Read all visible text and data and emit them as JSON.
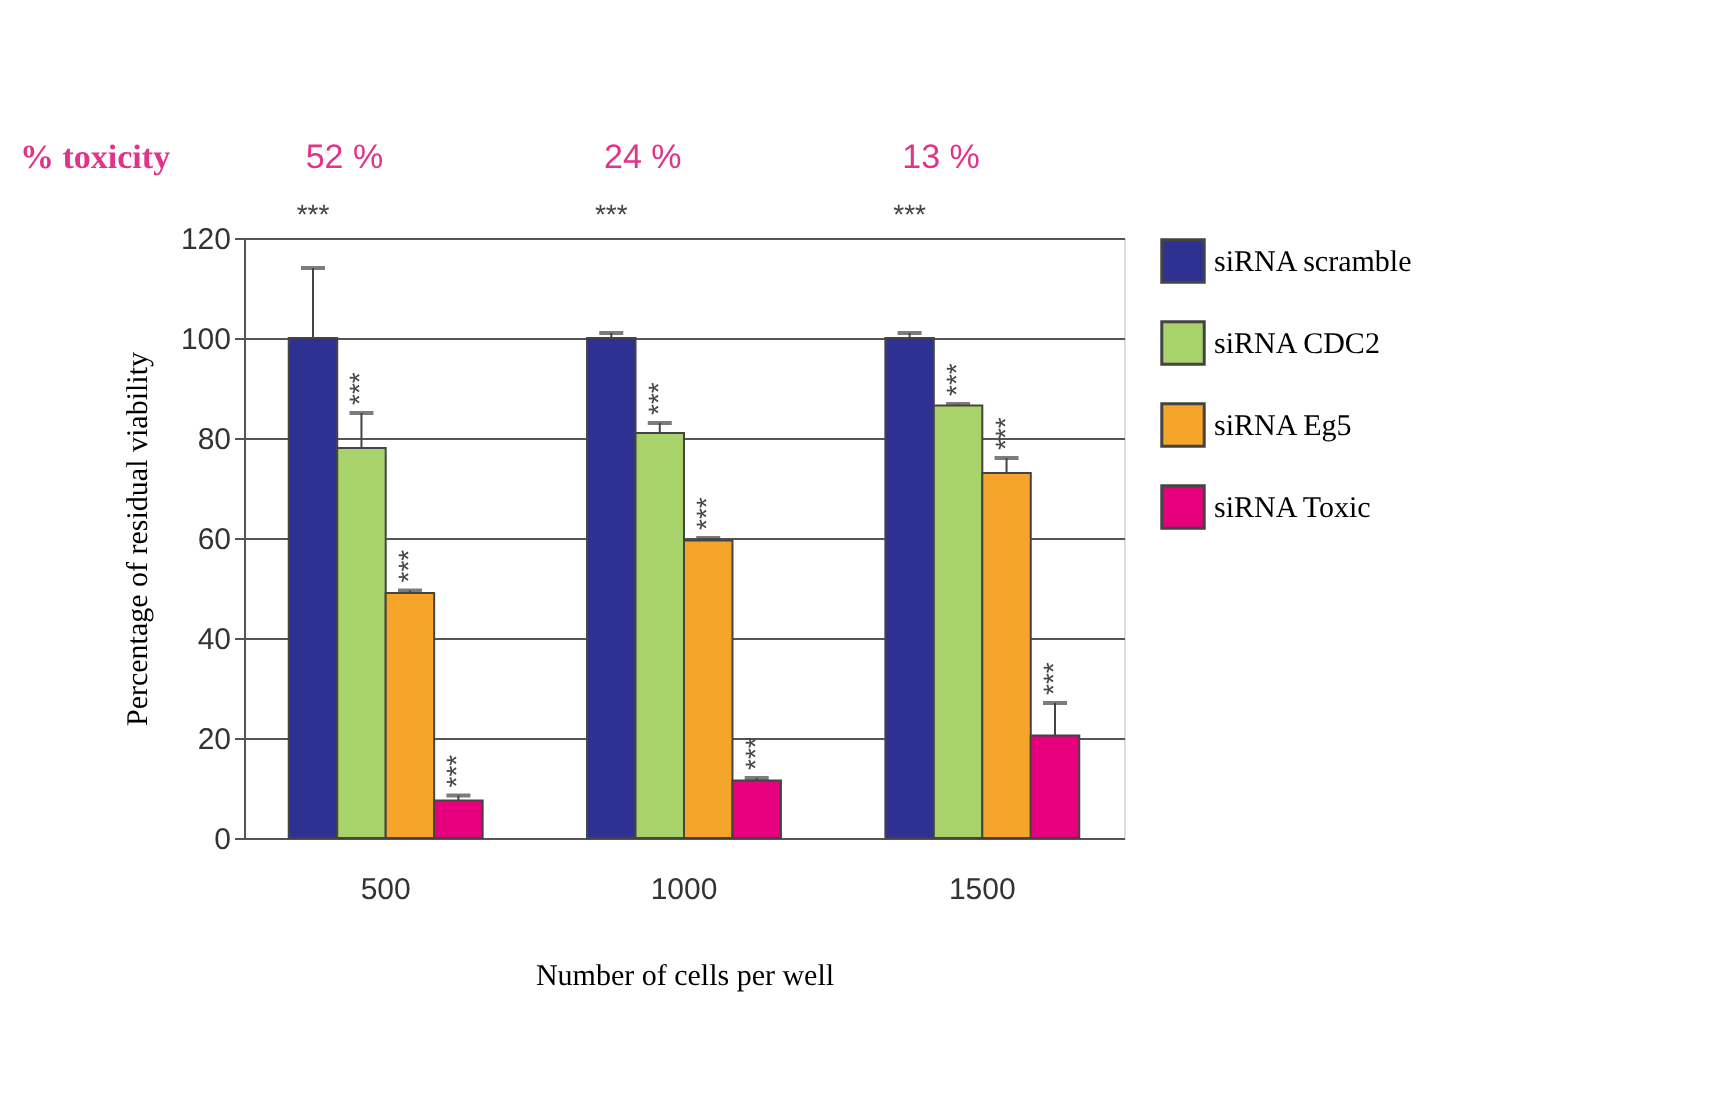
{
  "chart_data": {
    "type": "bar",
    "categories": [
      "500",
      "1000",
      "1500"
    ],
    "xlabel": "Number of cells per well",
    "ylabel": "Percentage of residual viability",
    "ylim": [
      0,
      120
    ],
    "yticks": [
      0,
      20,
      40,
      60,
      80,
      100,
      120
    ],
    "grid": "y",
    "legend": "right",
    "series": [
      {
        "name": "siRNA scramble",
        "color": "#2e3192",
        "values": [
          100,
          100,
          100
        ],
        "errors": [
          [
            100,
            114
          ],
          [
            100,
            101
          ],
          [
            100,
            101
          ]
        ]
      },
      {
        "name": "siRNA CDC2",
        "color": "#a8d26a",
        "values": [
          78,
          81,
          86.5
        ],
        "errors": [
          [
            78,
            85
          ],
          [
            81,
            83
          ],
          [
            86.5,
            86.8
          ]
        ],
        "value_labels": [
          "***",
          "***",
          "***"
        ]
      },
      {
        "name": "siRNA Eg5",
        "color": "#f4a52a",
        "values": [
          49,
          59.5,
          73
        ],
        "errors": [
          [
            49,
            49.5
          ],
          [
            59.5,
            60
          ],
          [
            73,
            76
          ]
        ],
        "value_labels": [
          "***",
          "***",
          "***"
        ]
      },
      {
        "name": "siRNA Toxic",
        "color": "#e6007e",
        "values": [
          7.5,
          11.5,
          20.5
        ],
        "errors": [
          [
            7.5,
            8.5
          ],
          [
            11.5,
            12
          ],
          [
            20.5,
            27
          ]
        ],
        "value_labels": [
          "***",
          "***",
          "***"
        ]
      }
    ],
    "annotations": [
      "% toxicity",
      "52 %",
      "24 %",
      "13 %",
      "***",
      "***",
      "***"
    ]
  }
}
